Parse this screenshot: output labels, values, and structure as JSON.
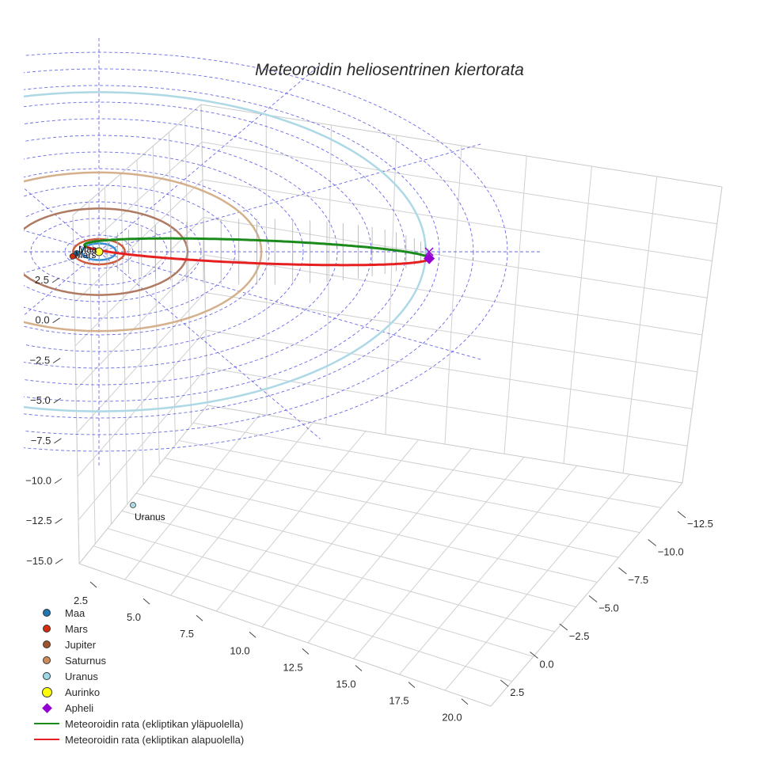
{
  "chart_data": {
    "type": "scatter3d",
    "title": "Meteoroidin heliosentrinen kiertorata",
    "axes": {
      "x_ticks": [
        "2.5",
        "5.0",
        "7.5",
        "10.0",
        "12.5",
        "15.0",
        "17.5",
        "20.0"
      ],
      "y_ticks": [
        "−12.5",
        "−10.0",
        "−7.5",
        "−5.0",
        "−2.5",
        "0.0",
        "2.5"
      ],
      "z_ticks": [
        "2.5",
        "0.0",
        "−2.5",
        "−5.0",
        "−7.5",
        "−10.0",
        "−12.5",
        "−15.0"
      ]
    },
    "planet_orbit_radii_au": {
      "Maa": 1.0,
      "Mars": 1.52,
      "Jupiter": 5.2,
      "Saturnus": 9.54,
      "Uranus": 19.2
    },
    "planet_labels": [
      "Maa",
      "Mars",
      "Uranus"
    ],
    "ecliptic_grid_rings_au": [
      2,
      4,
      6,
      8,
      10,
      12,
      14,
      16,
      18,
      20,
      22,
      24
    ],
    "meteoroid": {
      "perihelion_au": 0.85,
      "aphelion_au": 19.4,
      "max_height_au": 2.8
    }
  },
  "legend": [
    {
      "label": "Maa",
      "color": "#1f77b4",
      "marker": "dot"
    },
    {
      "label": "Mars",
      "color": "#d62d0a",
      "marker": "dot"
    },
    {
      "label": "Jupiter",
      "color": "#a0522d",
      "marker": "dot"
    },
    {
      "label": "Saturnus",
      "color": "#cd8c5a",
      "marker": "dot"
    },
    {
      "label": "Uranus",
      "color": "#9fd8e8",
      "marker": "dot"
    },
    {
      "label": "Aurinko",
      "color": "#ffff00",
      "marker": "bigdot"
    },
    {
      "label": "Apheli",
      "color": "#9400d3",
      "marker": "diamond"
    },
    {
      "label": "Meteoroidin rata (ekliptikan yläpuolella)",
      "color": "#1a8a1a",
      "marker": "line"
    },
    {
      "label": "Meteoroidin rata (ekliptikan alapuolella)",
      "color": "#e62020",
      "marker": "line"
    }
  ],
  "colors": {
    "maa": "#3a8fd0",
    "mars": "#cd5c3c",
    "jupiter": "#b07a62",
    "saturnus": "#d4b08c",
    "uranus": "#add8e6",
    "sun": "#ffff40",
    "apheli": "#9400d3",
    "above": "#1a8a1a",
    "below": "#e62020",
    "grid": "#d0d0d0",
    "ecliptic_grid": "#5050e0"
  }
}
